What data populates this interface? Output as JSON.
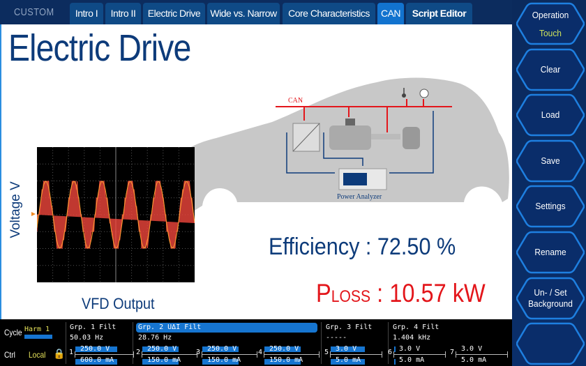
{
  "header": {
    "brand": "CUSTOM",
    "tabs": [
      {
        "label": "Intro I"
      },
      {
        "label": "Intro II"
      },
      {
        "label": "Electric Drive"
      },
      {
        "label": "Wide vs. Narrow"
      },
      {
        "label": "Core Characteristics"
      },
      {
        "label": "CAN",
        "active": true
      },
      {
        "label": "Script Editor"
      }
    ]
  },
  "main": {
    "title": "Electric Drive",
    "scope": {
      "y_label": "Voltage V",
      "caption": "VFD Output"
    },
    "diagram": {
      "bus_label": "CAN",
      "analyzer_label": "Power Analyzer"
    },
    "efficiency": "Efficiency : 72.50 %",
    "ploss": {
      "p": "P",
      "sub": "LOSS",
      "value": " : 10.57 kW"
    }
  },
  "sidebar": {
    "buttons": [
      {
        "label": "Operation",
        "sub": "Touch"
      },
      {
        "label": "Clear"
      },
      {
        "label": "Load"
      },
      {
        "label": "Save"
      },
      {
        "label": "Settings"
      },
      {
        "label": "Rename"
      },
      {
        "label": "Un- / Set",
        "label2": "Background"
      },
      {
        "label": ""
      }
    ]
  },
  "status": {
    "cycle_label": "Cycle",
    "cycle_value": "Harm 1",
    "ctrl_label": "Ctrl",
    "ctrl_value": "Local",
    "groups": [
      {
        "name": "Grp. 1",
        "extra": "",
        "filt": "Filt",
        "freq": "50.03  Hz"
      },
      {
        "name": "Grp. 2",
        "extra": "UΔI",
        "filt": "Filt",
        "freq": "28.76  Hz"
      },
      {
        "name": "Grp. 3",
        "extra": "",
        "filt": "Filt",
        "freq": "-----"
      },
      {
        "name": "Grp. 4",
        "extra": "",
        "filt": "Filt",
        "freq": "1.404 kHz"
      }
    ],
    "elements": [
      {
        "n": "1",
        "v": "250.0 V",
        "i": "600.0 mA"
      },
      {
        "n": "2",
        "v": "250.0 V",
        "i": "150.0 mA"
      },
      {
        "n": "3",
        "v": "250.0 V",
        "i": "150.0 mA"
      },
      {
        "n": "4",
        "v": "250.0 V",
        "i": "150.0 mA"
      },
      {
        "n": "5",
        "v": "3.0 V",
        "i": "5.0 mA"
      },
      {
        "n": "6",
        "v": "3.0 V",
        "i": "5.0 mA"
      },
      {
        "n": "7",
        "v": "3.0 V",
        "i": "5.0 mA"
      }
    ]
  },
  "colors": {
    "accent": "#1273cf",
    "title": "#0d3b7a",
    "ploss": "#e3161b",
    "can": "#e3161b"
  }
}
